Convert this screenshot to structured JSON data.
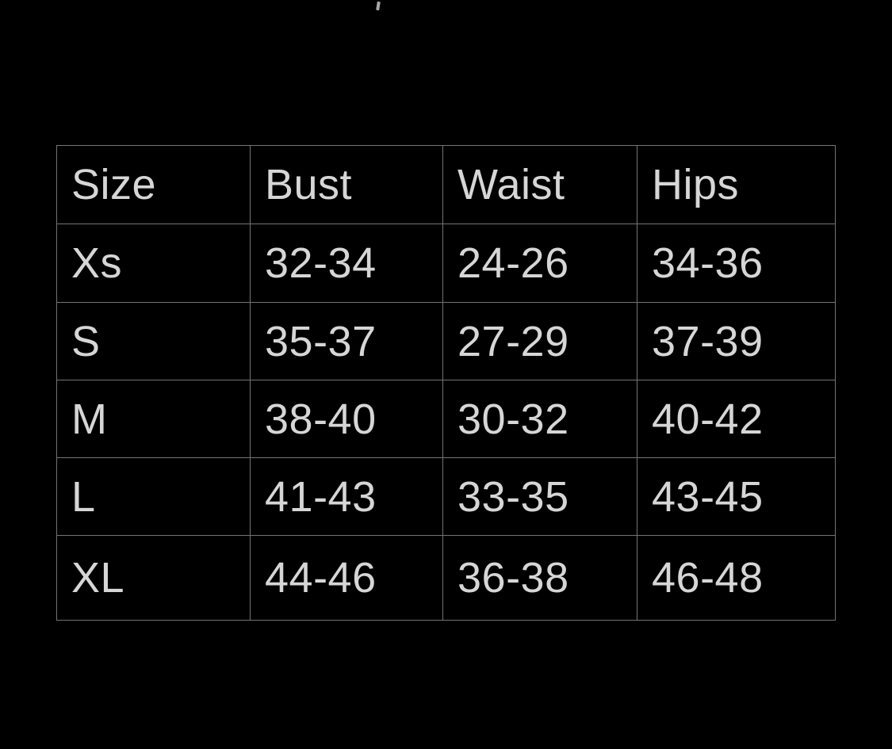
{
  "colors": {
    "background": "#000000",
    "table_border": "#747474",
    "cell_text": "#d6d6d6",
    "fragment": "#a8a8a8"
  },
  "decoration": {
    "cutoff_fragment": "partial character clipped at top edge"
  },
  "chart_data": {
    "type": "table",
    "columns": [
      "Size",
      "Bust",
      "Waist",
      "Hips"
    ],
    "rows": [
      [
        "Xs",
        "32-34",
        "24-26",
        "34-36"
      ],
      [
        "S",
        "35-37",
        "27-29",
        "37-39"
      ],
      [
        "M",
        "38-40",
        "30-32",
        "40-42"
      ],
      [
        "L",
        "41-43",
        "33-35",
        "43-45"
      ],
      [
        "XL",
        "44-46",
        "36-38",
        "46-48"
      ]
    ]
  }
}
